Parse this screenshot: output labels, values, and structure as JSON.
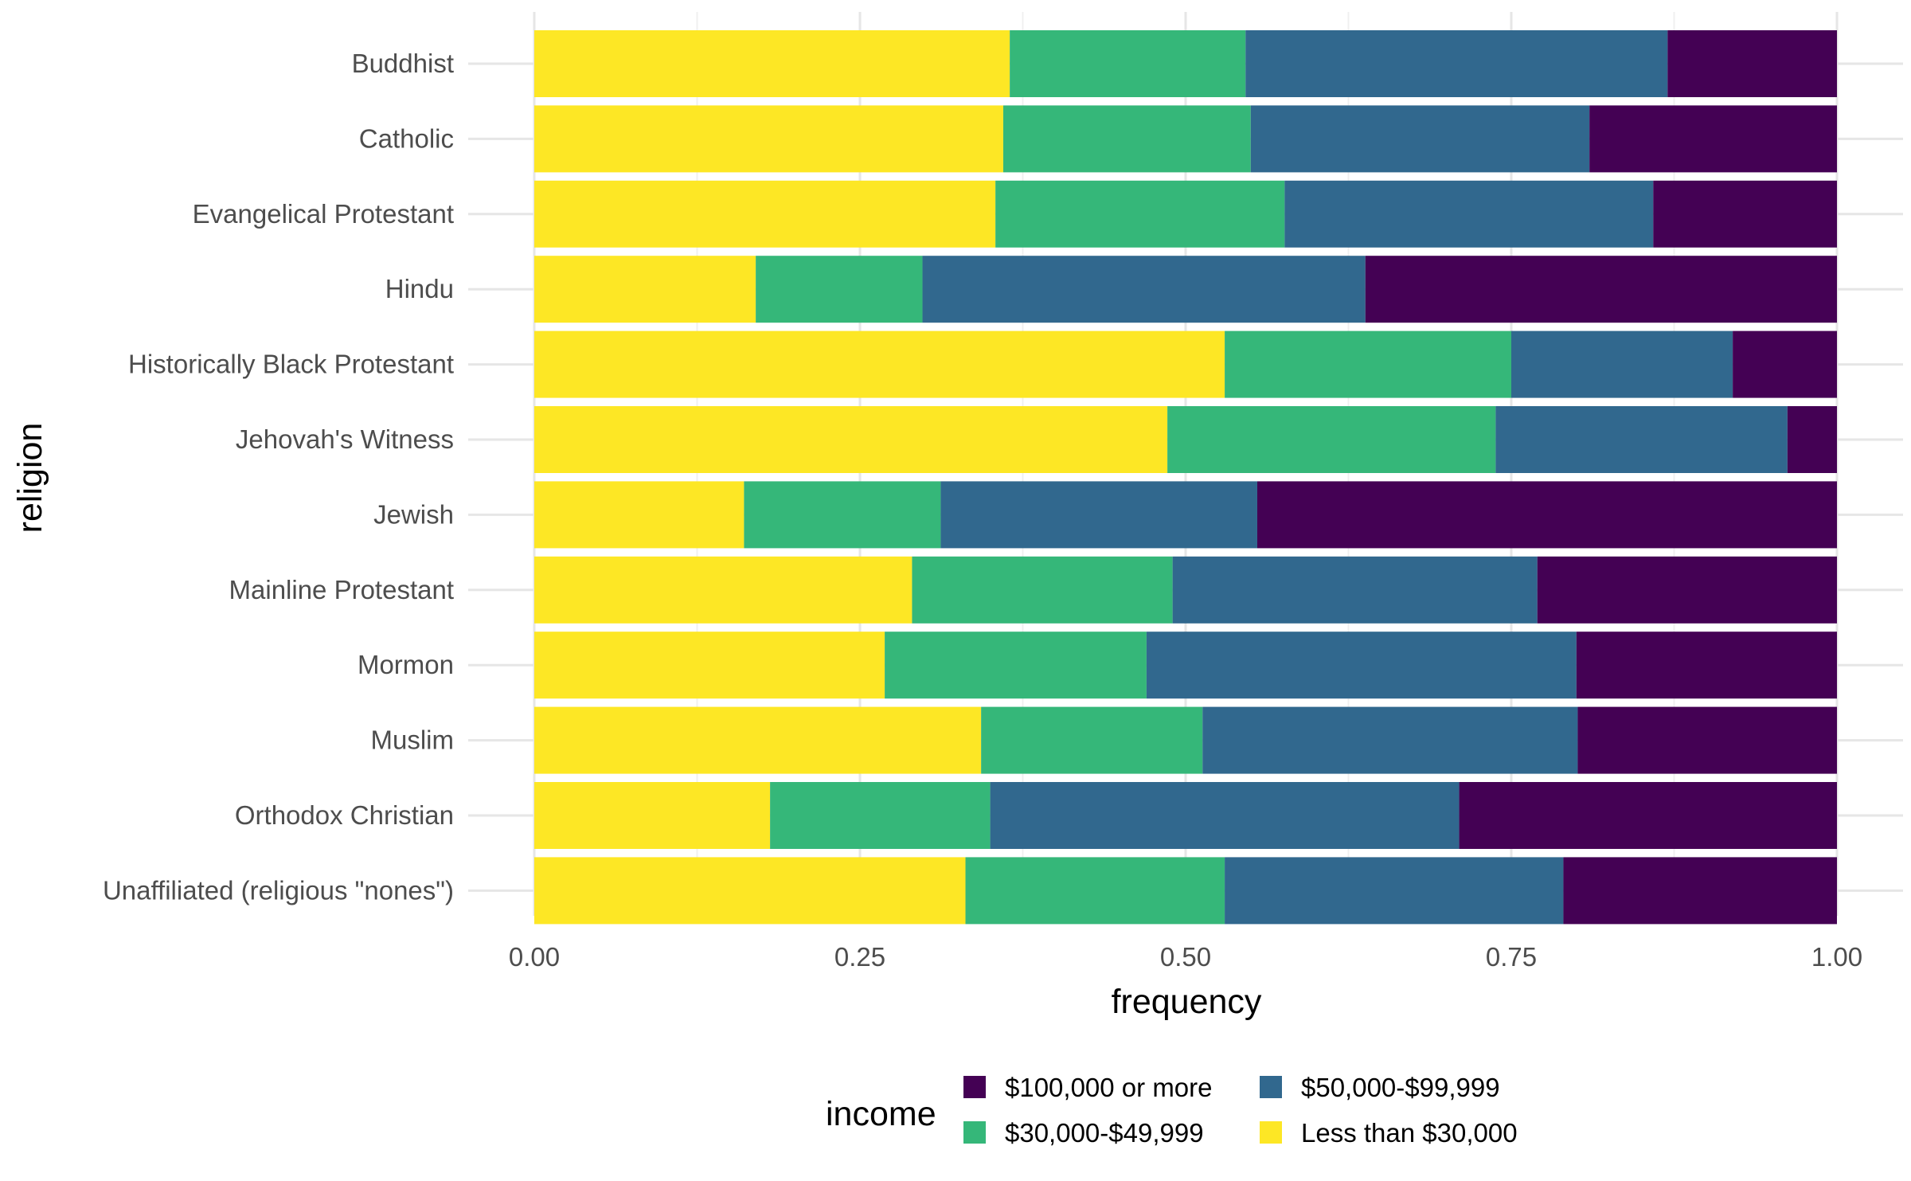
{
  "chart_data": {
    "type": "bar",
    "orientation": "horizontal",
    "stacked": true,
    "normalized": true,
    "categories": [
      "Buddhist",
      "Catholic",
      "Evangelical Protestant",
      "Hindu",
      "Historically Black Protestant",
      "Jehovah's Witness",
      "Jewish",
      "Mainline Protestant",
      "Mormon",
      "Muslim",
      "Orthodox Christian",
      "Unaffiliated (religious \"nones\")"
    ],
    "series": [
      {
        "name": "Less than $30,000",
        "color": "#FDE725",
        "values": [
          0.365,
          0.36,
          0.354,
          0.17,
          0.53,
          0.486,
          0.161,
          0.29,
          0.269,
          0.343,
          0.181,
          0.331
        ]
      },
      {
        "name": "$30,000-$49,999",
        "color": "#35B779",
        "values": [
          0.181,
          0.19,
          0.222,
          0.128,
          0.22,
          0.252,
          0.151,
          0.2,
          0.201,
          0.17,
          0.169,
          0.199
        ]
      },
      {
        "name": "$50,000-$99,999",
        "color": "#31688E",
        "values": [
          0.324,
          0.26,
          0.283,
          0.34,
          0.17,
          0.224,
          0.243,
          0.28,
          0.33,
          0.288,
          0.36,
          0.26
        ]
      },
      {
        "name": "$100,000 or more",
        "color": "#440154",
        "values": [
          0.13,
          0.19,
          0.141,
          0.362,
          0.08,
          0.038,
          0.445,
          0.23,
          0.2,
          0.199,
          0.29,
          0.21
        ]
      }
    ],
    "xlabel": "frequency",
    "ylabel": "religion",
    "xlim": [
      0,
      1
    ],
    "xticks": [
      "0.00",
      "0.25",
      "0.50",
      "0.75",
      "1.00"
    ],
    "grid": true,
    "legend": {
      "title": "income",
      "position": "bottom",
      "entries": [
        "$100,000 or more",
        "$30,000-$49,999",
        "$50,000-$99,999",
        "Less than $30,000"
      ]
    }
  }
}
